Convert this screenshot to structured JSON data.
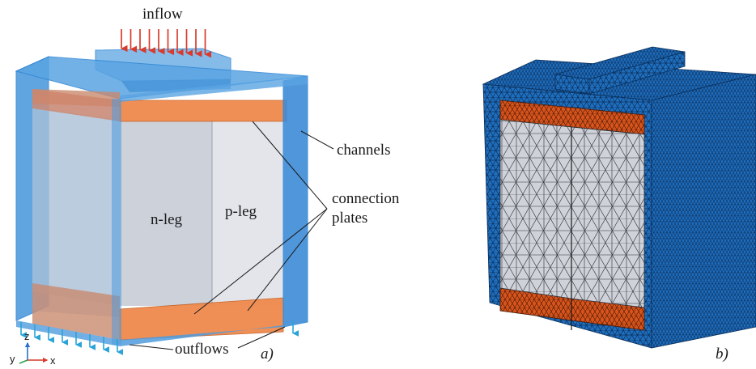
{
  "panel_a": {
    "inflow_label": "inflow",
    "channels_label": "channels",
    "connection_label_line1": "connection",
    "connection_label_line2": "plates",
    "n_leg_label": "n-leg",
    "p_leg_label": "p-leg",
    "outflows_label": "outflows",
    "panel_tag": "a)",
    "axes": {
      "z": "z",
      "y": "y",
      "x": "x"
    },
    "inflow_arrow_count": 10,
    "outflow_arrow_count_left": 8
  },
  "panel_b": {
    "panel_tag": "b)"
  },
  "colors": {
    "channel_blue": "#2f86d4",
    "channel_blue_light": "#6fb0e6",
    "plate_orange": "#e8793a",
    "inflow_arrow": "#d93a2b",
    "outflow_arrow": "#2aa3d8",
    "leg_gray": "#cfd3da",
    "mesh_blue": "#1f6fbf",
    "mesh_orange": "#d9541c"
  }
}
